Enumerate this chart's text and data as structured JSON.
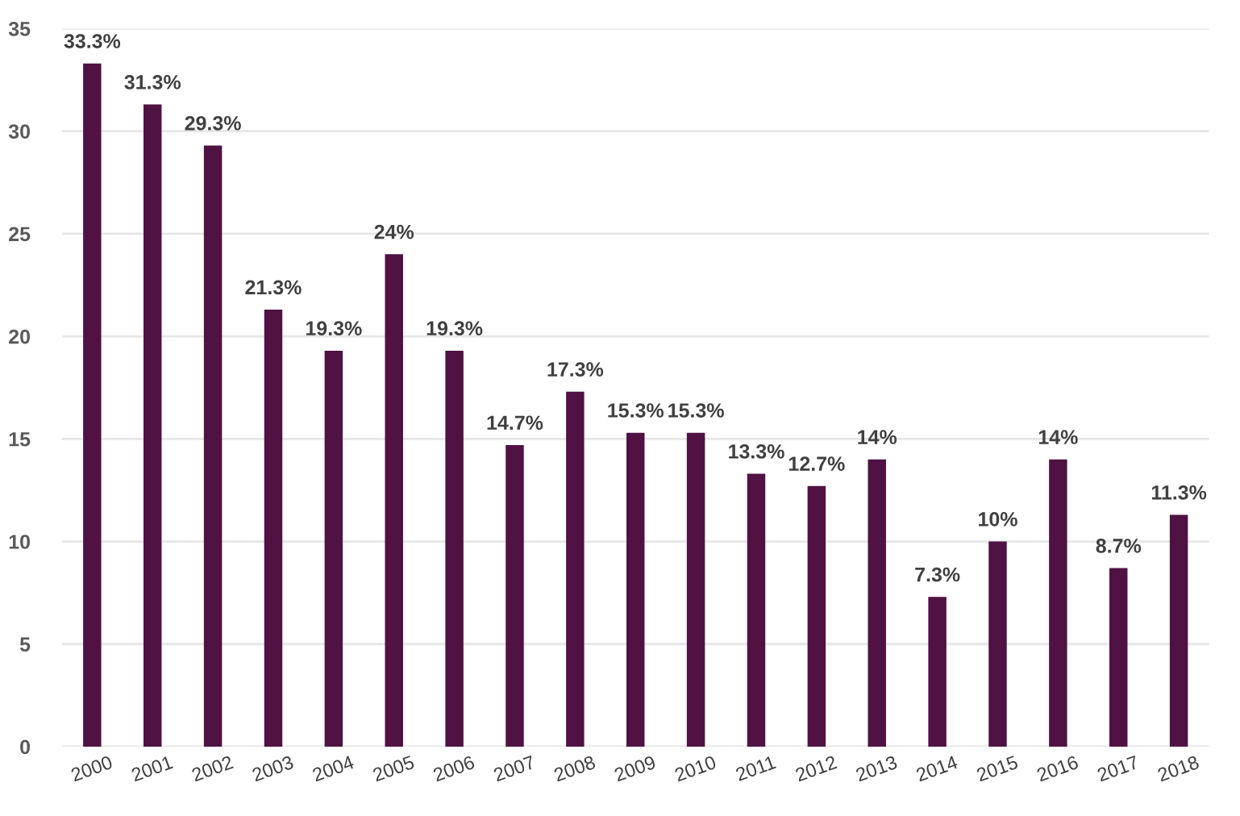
{
  "chart_data": {
    "type": "bar",
    "categories": [
      "2000",
      "2001",
      "2002",
      "2003",
      "2004",
      "2005",
      "2006",
      "2007",
      "2008",
      "2009",
      "2010",
      "2011",
      "2012",
      "2013",
      "2014",
      "2015",
      "2016",
      "2017",
      "2018"
    ],
    "values": [
      33.3,
      31.3,
      29.3,
      21.3,
      19.3,
      24,
      19.3,
      14.7,
      17.3,
      15.3,
      15.3,
      13.3,
      12.7,
      14,
      7.3,
      10,
      14,
      8.7,
      11.3
    ],
    "value_labels": [
      "33.3%",
      "31.3%",
      "29.3%",
      "21.3%",
      "19.3%",
      "24%",
      "19.3%",
      "14.7%",
      "17.3%",
      "15.3%",
      "15.3%",
      "13.3%",
      "12.7%",
      "14%",
      "7.3%",
      "10%",
      "14%",
      "8.7%",
      "11.3%"
    ],
    "color": "#4f1243",
    "ylim": [
      0,
      35
    ],
    "yticks": [
      0,
      5,
      10,
      15,
      20,
      25,
      30,
      35
    ],
    "grid": "y",
    "legend": false
  }
}
